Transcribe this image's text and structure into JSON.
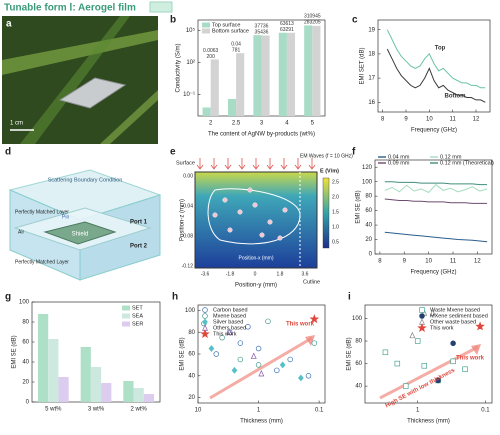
{
  "header": {
    "title": "Tunable form Ⅰ: Aerogel film"
  },
  "photo": {
    "label": "a",
    "scale": "1 cm"
  },
  "diagram": {
    "label": "d",
    "boundary": "Scattering Boundary Condition",
    "pml_top": "Perfectly Matched Layer",
    "pml_bottom": "Perfectly Matched Layer",
    "air": "Air",
    "shield": "Shield",
    "port1": "Port 1",
    "port2": "Port 2",
    "pin": "Pin"
  },
  "simulation": {
    "label": "e",
    "surface": "Surface",
    "waves": "EM Waves (f = 10 GHz)",
    "colorbar_title": "E (V/m)",
    "colorbar_ticks": [
      "2.5",
      "2.0",
      "1.5",
      "1.0",
      "0.5"
    ],
    "ylabel": "Position-z (mm)",
    "yticks": [
      "0.00",
      "-0.04",
      "-0.08",
      "-0.12"
    ],
    "inner_xlabel": "Position-x (mm)",
    "xlabel": "Position-y (mm)",
    "xticks": [
      "-3.6",
      "-1.8",
      "0",
      "1.8",
      "3.6"
    ],
    "cutline": "Cutline"
  },
  "chart_data": [
    {
      "type": "bar",
      "label": "b",
      "ylabel": "Conductivity (S/m)",
      "xlabel": "The content of AgNW by-products (wt%)",
      "categories": [
        "2",
        "2.5",
        "3",
        "4",
        "5"
      ],
      "ylog": true,
      "ylim": [
        0.001,
        1000000
      ],
      "yticks": [
        {
          "value": 0.1,
          "label": "10⁻¹"
        },
        {
          "value": 100,
          "label": "10²"
        },
        {
          "value": 100000,
          "label": "10⁵"
        }
      ],
      "legend": "upper left",
      "series": [
        {
          "name": "Top surface",
          "color": "#a9dcc6",
          "values": [
            0.0063,
            0.04,
            37736,
            63613,
            310945
          ]
        },
        {
          "name": "Bottom surface",
          "color": "#d3d3d3",
          "values": [
            200,
            781,
            35436,
            63291,
            283205
          ]
        }
      ]
    },
    {
      "type": "line",
      "label": "c",
      "ylabel": "EMI SET (dB)",
      "xlabel": "Frequency (GHz)",
      "x": [
        8.2,
        8.4,
        8.6,
        8.8,
        9.0,
        9.2,
        9.4,
        9.6,
        9.8,
        10.0,
        10.2,
        10.4,
        10.6,
        10.8,
        11.0,
        11.2,
        11.4,
        11.6,
        11.8,
        12.0,
        12.2,
        12.4
      ],
      "xlim": [
        7.8,
        12.6
      ],
      "xticks": [
        8,
        9,
        10,
        11,
        12
      ],
      "ylim": [
        15.6,
        19.4
      ],
      "yticks": [
        16,
        17,
        18,
        19
      ],
      "annotations": [
        "Top",
        "Bottom"
      ],
      "series": [
        {
          "name": "Top",
          "color": "#6cc3a4",
          "values": [
            19.0,
            18.6,
            18.2,
            17.9,
            17.7,
            17.5,
            17.4,
            17.5,
            17.8,
            18.0,
            17.6,
            17.3,
            17.4,
            17.2,
            17.0,
            16.9,
            16.8,
            16.8,
            16.7,
            16.7,
            16.6,
            16.6
          ]
        },
        {
          "name": "Bottom",
          "color": "#3a3a3a",
          "values": [
            18.2,
            17.8,
            17.4,
            17.1,
            16.9,
            16.7,
            16.6,
            16.7,
            17.0,
            17.4,
            16.9,
            16.6,
            16.7,
            16.5,
            16.4,
            16.3,
            16.3,
            16.2,
            16.2,
            16.1,
            16.1,
            16.0
          ]
        }
      ]
    },
    {
      "type": "line",
      "label": "f",
      "ylabel": "EMI SE (dB)",
      "xlabel": "Frequency (GHz)",
      "x": [
        8.2,
        8.5,
        8.8,
        9.1,
        9.4,
        9.7,
        10.0,
        10.3,
        10.6,
        10.9,
        11.2,
        11.5,
        11.8,
        12.1,
        12.4
      ],
      "xlim": [
        7.8,
        12.6
      ],
      "xticks": [
        8,
        9,
        10,
        11,
        12
      ],
      "ylim": [
        0,
        130
      ],
      "yticks": [
        0,
        20,
        40,
        60,
        80,
        100,
        120
      ],
      "legend": "top",
      "series": [
        {
          "name": "0.04 mm",
          "color": "#2b5d8c",
          "values": [
            30,
            29,
            28,
            27,
            26,
            25,
            24,
            23,
            22,
            21,
            20,
            19.5,
            19,
            18,
            17
          ]
        },
        {
          "name": "0.12 mm",
          "color": "#a6dcc0",
          "values": [
            88,
            92,
            86,
            95,
            87,
            90,
            85,
            96,
            88,
            91,
            86,
            89,
            93,
            87,
            90
          ]
        },
        {
          "name": "0.09 mm",
          "color": "#6e4a6e",
          "values": [
            76,
            75,
            74,
            74,
            73,
            73,
            72,
            72,
            72,
            71,
            71,
            71,
            70,
            70,
            70
          ]
        },
        {
          "name": "0.12 mm (Theoretical)",
          "color": "#3f8f7a",
          "values": [
            100,
            100,
            99,
            99,
            99,
            98,
            98,
            98,
            98,
            97,
            97,
            97,
            97,
            96,
            96
          ]
        }
      ]
    },
    {
      "type": "bar",
      "label": "g",
      "ylabel": "EMI SE (dB)",
      "categories": [
        "5 wt%",
        "3 wt%",
        "2 wt%"
      ],
      "ylim": [
        0,
        100
      ],
      "yticks": [
        0,
        20,
        40,
        60,
        80,
        100
      ],
      "legend": "upper right",
      "series": [
        {
          "name": "SET",
          "color": "#aee0c8",
          "values": [
            88,
            55,
            21
          ]
        },
        {
          "name": "SEA",
          "color": "#cde9df",
          "values": [
            63,
            35,
            14
          ]
        },
        {
          "name": "SER",
          "color": "#dccdf0",
          "values": [
            25,
            19,
            8
          ]
        }
      ]
    },
    {
      "type": "scatter",
      "label": "h",
      "ylabel": "EMI SE (dB)",
      "xlabel": "Thickness (mm)",
      "xlog": true,
      "xlim": [
        10,
        0.08
      ],
      "xticks": [
        10,
        1,
        0.1
      ],
      "ylim": [
        15,
        105
      ],
      "yticks": [
        20,
        40,
        60,
        80,
        100
      ],
      "legend": "upper left",
      "annotations": [
        "This work"
      ],
      "series": [
        {
          "name": "Carbon based",
          "color": "#3b6fb0",
          "marker": "circle",
          "filled": false,
          "x": [
            3,
            2,
            1,
            0.5,
            0.3,
            5,
            1.5,
            0.15
          ],
          "y": [
            80,
            70,
            65,
            45,
            55,
            60,
            85,
            40
          ]
        },
        {
          "name": "Mxene based",
          "color": "#3f9a8a",
          "marker": "circle",
          "filled": false,
          "x": [
            8,
            4,
            2,
            1,
            0.7,
            0.12
          ],
          "y": [
            88,
            75,
            55,
            50,
            90,
            70
          ]
        },
        {
          "name": "Silver based",
          "color": "#56c0c8",
          "marker": "diamond",
          "filled": true,
          "x": [
            6,
            2.5,
            0.4,
            0.2
          ],
          "y": [
            65,
            45,
            50,
            38
          ]
        },
        {
          "name": "Others based",
          "color": "#8a5ab0",
          "marker": "triangle",
          "filled": false,
          "x": [
            3,
            1.2,
            0.9
          ],
          "y": [
            80,
            58,
            42
          ]
        },
        {
          "name": "This work",
          "color": "#e0483e",
          "marker": "star",
          "filled": true,
          "x": [
            0.12
          ],
          "y": [
            92
          ]
        }
      ]
    },
    {
      "type": "scatter",
      "label": "i",
      "ylabel": "EMI SE (dB)",
      "xlabel": "Thickness (mm)",
      "xlog": true,
      "xlim": [
        6,
        0.08
      ],
      "xticks": [
        1,
        0.1
      ],
      "ylim": [
        25,
        112
      ],
      "yticks": [
        40,
        60,
        80,
        100
      ],
      "legend": "upper left",
      "annotations": [
        "This work",
        "High SE with low thickness"
      ],
      "series": [
        {
          "name": "Waste Mxene based",
          "color": "#4aa596",
          "marker": "square",
          "filled": false,
          "x": [
            3,
            2,
            1,
            0.8,
            0.5,
            0.3,
            0.2,
            1.5
          ],
          "y": [
            70,
            60,
            80,
            58,
            45,
            62,
            55,
            40
          ]
        },
        {
          "name": "MXene sediment based",
          "color": "#23406e",
          "marker": "circle",
          "filled": true,
          "x": [
            0.3,
            0.5
          ],
          "y": [
            78,
            45
          ]
        },
        {
          "name": "Other waste based",
          "color": "#888888",
          "marker": "triangle",
          "filled": false,
          "x": [
            0.8,
            0.6,
            1.2
          ],
          "y": [
            105,
            105,
            85
          ]
        },
        {
          "name": "This work",
          "color": "#e0483e",
          "marker": "star",
          "filled": true,
          "x": [
            0.12
          ],
          "y": [
            93
          ]
        }
      ]
    }
  ]
}
